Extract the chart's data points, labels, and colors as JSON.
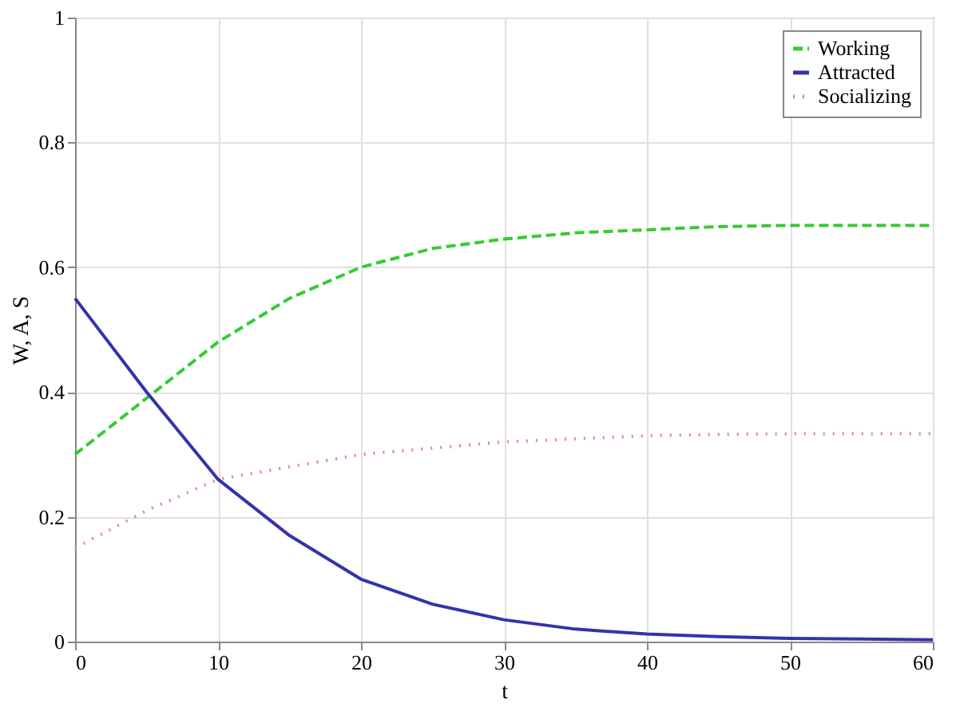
{
  "chart_data": {
    "type": "line",
    "xlabel": "t",
    "ylabel": "W, A, S",
    "x": [
      0,
      5,
      10,
      15,
      20,
      25,
      30,
      35,
      40,
      45,
      50,
      55,
      60
    ],
    "series": [
      {
        "name": "Working",
        "color": "#33cc33",
        "line_style": "dashed",
        "values": [
          0.3,
          0.39,
          0.48,
          0.55,
          0.6,
          0.63,
          0.645,
          0.655,
          0.66,
          0.665,
          0.667,
          0.667,
          0.667
        ]
      },
      {
        "name": "Attracted",
        "color": "#3333aa",
        "line_style": "solid",
        "values": [
          0.55,
          0.4,
          0.26,
          0.17,
          0.1,
          0.06,
          0.035,
          0.02,
          0.012,
          0.008,
          0.005,
          0.004,
          0.003
        ]
      },
      {
        "name": "Socializing",
        "color": "#dd8899",
        "line_style": "dotted",
        "values": [
          0.15,
          0.21,
          0.26,
          0.28,
          0.3,
          0.31,
          0.32,
          0.325,
          0.33,
          0.332,
          0.333,
          0.333,
          0.333
        ]
      }
    ],
    "xlim": [
      0,
      60
    ],
    "xticks": [
      0,
      10,
      20,
      30,
      40,
      50,
      60
    ],
    "ylim": [
      0,
      1
    ],
    "yticks": [
      0,
      0.2,
      0.4,
      0.6,
      0.8,
      1
    ],
    "grid": true,
    "legend": "top right"
  }
}
